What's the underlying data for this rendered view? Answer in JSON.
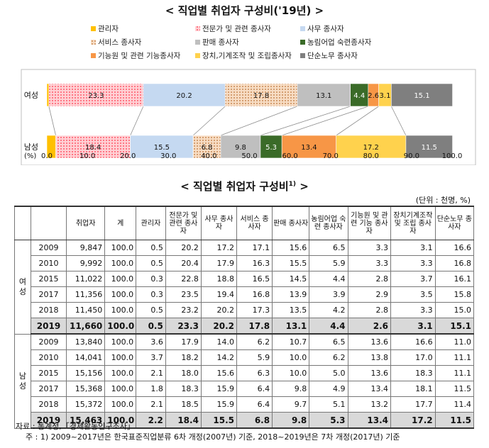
{
  "title_chart": "< 직업별 취업자 구성비('19년) >",
  "title_table": "< 직업별 취업자 구성비",
  "title_table_sup": "1)",
  "title_table_end": " >",
  "unit": "(단위 : 천명, %)",
  "chart_data": {
    "type": "bar",
    "orientation": "horizontal",
    "stacked": true,
    "title": "< 직업별 취업자 구성비('19년) >",
    "xlabel": "(%)",
    "xlim": [
      0,
      100
    ],
    "xticks": [
      "0.0",
      "10.0",
      "20.0",
      "30.0",
      "40.0",
      "50.0",
      "60.0",
      "70.0",
      "80.0",
      "90.0",
      "100.0"
    ],
    "categories": [
      "여성",
      "남성"
    ],
    "legend_position": "top",
    "series": [
      {
        "name": "관리자",
        "color": "#ffc000",
        "values": [
          0.5,
          2.2
        ],
        "labels": [
          "",
          ""
        ]
      },
      {
        "name": "전문가 및 관련 종사자",
        "color": "#ff9aa2",
        "pattern": "dots",
        "values": [
          23.3,
          18.4
        ],
        "labels": [
          "23.3",
          "18.4"
        ]
      },
      {
        "name": "사무 종사자",
        "color": "#c5d9f1",
        "values": [
          20.2,
          15.5
        ],
        "labels": [
          "20.2",
          "15.5"
        ]
      },
      {
        "name": "서비스 종사자",
        "color": "#f2c6a0",
        "pattern": "dots",
        "values": [
          17.8,
          6.8
        ],
        "labels": [
          "17.8",
          "6.8"
        ]
      },
      {
        "name": "판매 종사자",
        "color": "#bfbfbf",
        "values": [
          13.1,
          9.8
        ],
        "labels": [
          "13.1",
          "9.8"
        ]
      },
      {
        "name": "농림어업 숙련종사자",
        "color": "#3a6b28",
        "values": [
          4.4,
          5.3
        ],
        "labels": [
          "4.4",
          "5.3"
        ]
      },
      {
        "name": "기능원 및 관련 기능종사자",
        "color": "#f79646",
        "values": [
          2.6,
          13.4
        ],
        "labels": [
          "2.6",
          "13.4"
        ]
      },
      {
        "name": "장치,기계조작 및 조립종사자",
        "color": "#ffd24d",
        "values": [
          3.1,
          17.2
        ],
        "labels": [
          "3.1",
          "17.2"
        ]
      },
      {
        "name": "단순노무 종사자",
        "color": "#7f7f7f",
        "values": [
          15.1,
          11.5
        ],
        "labels": [
          "15.1",
          "11.5"
        ]
      }
    ]
  },
  "table": {
    "headers": [
      "취업자",
      "계",
      "관리자",
      "전문가 및 관련 종사자",
      "사무 종사자",
      "서비스 종사자",
      "판매 종사자",
      "농림어업 숙련 종사자",
      "기능원 및 관련 기능 종사자",
      "장치기계조작 및 조립 종사자",
      "단순노무 종사자"
    ],
    "groups": [
      {
        "name": "여성",
        "rows": [
          {
            "year": "2009",
            "cells": [
              "9,847",
              "100.0",
              "0.5",
              "20.2",
              "17.2",
              "17.1",
              "15.6",
              "6.5",
              "3.3",
              "3.1",
              "16.6"
            ]
          },
          {
            "year": "2010",
            "cells": [
              "9,992",
              "100.0",
              "0.5",
              "20.4",
              "17.9",
              "16.3",
              "15.5",
              "5.9",
              "3.3",
              "3.3",
              "16.8"
            ]
          },
          {
            "year": "2015",
            "cells": [
              "11,022",
              "100.0",
              "0.3",
              "22.8",
              "18.8",
              "16.5",
              "14.5",
              "4.4",
              "2.8",
              "3.7",
              "16.1"
            ]
          },
          {
            "year": "2017",
            "cells": [
              "11,356",
              "100.0",
              "0.3",
              "23.5",
              "19.4",
              "16.8",
              "13.9",
              "3.9",
              "2.9",
              "3.5",
              "15.8"
            ]
          },
          {
            "year": "2018",
            "cells": [
              "11,450",
              "100.0",
              "0.5",
              "23.2",
              "20.2",
              "17.3",
              "13.5",
              "4.2",
              "2.8",
              "3.3",
              "15.0"
            ]
          },
          {
            "year": "2019",
            "cells": [
              "11,660",
              "100.0",
              "0.5",
              "23.3",
              "20.2",
              "17.8",
              "13.1",
              "4.4",
              "2.6",
              "3.1",
              "15.1"
            ]
          }
        ]
      },
      {
        "name": "남성",
        "rows": [
          {
            "year": "2009",
            "cells": [
              "13,840",
              "100.0",
              "3.6",
              "17.9",
              "14.0",
              "6.2",
              "10.7",
              "6.5",
              "13.6",
              "16.6",
              "11.0"
            ]
          },
          {
            "year": "2010",
            "cells": [
              "14,041",
              "100.0",
              "3.7",
              "18.2",
              "14.2",
              "5.9",
              "10.0",
              "6.2",
              "13.8",
              "17.0",
              "11.1"
            ]
          },
          {
            "year": "2015",
            "cells": [
              "15,156",
              "100.0",
              "2.1",
              "18.0",
              "15.6",
              "6.3",
              "10.0",
              "5.0",
              "13.6",
              "18.3",
              "11.1"
            ]
          },
          {
            "year": "2017",
            "cells": [
              "15,368",
              "100.0",
              "1.8",
              "18.3",
              "15.9",
              "6.4",
              "9.8",
              "4.9",
              "13.4",
              "18.1",
              "11.5"
            ]
          },
          {
            "year": "2018",
            "cells": [
              "15,372",
              "100.0",
              "2.1",
              "18.5",
              "15.9",
              "6.4",
              "9.7",
              "5.1",
              "13.2",
              "17.7",
              "11.4"
            ]
          },
          {
            "year": "2019",
            "cells": [
              "15,463",
              "100.0",
              "2.2",
              "18.4",
              "15.5",
              "6.8",
              "9.8",
              "5.3",
              "13.4",
              "17.2",
              "11.5"
            ]
          }
        ]
      }
    ]
  },
  "notes": {
    "source": "자료 : 통계청,「경제활동인구조사」",
    "footnote": "주 : 1) 2009~2017년은 한국표준직업분류 6차 개정(2007년) 기준, 2018~2019년은 7차 개정(2017년) 기준"
  }
}
